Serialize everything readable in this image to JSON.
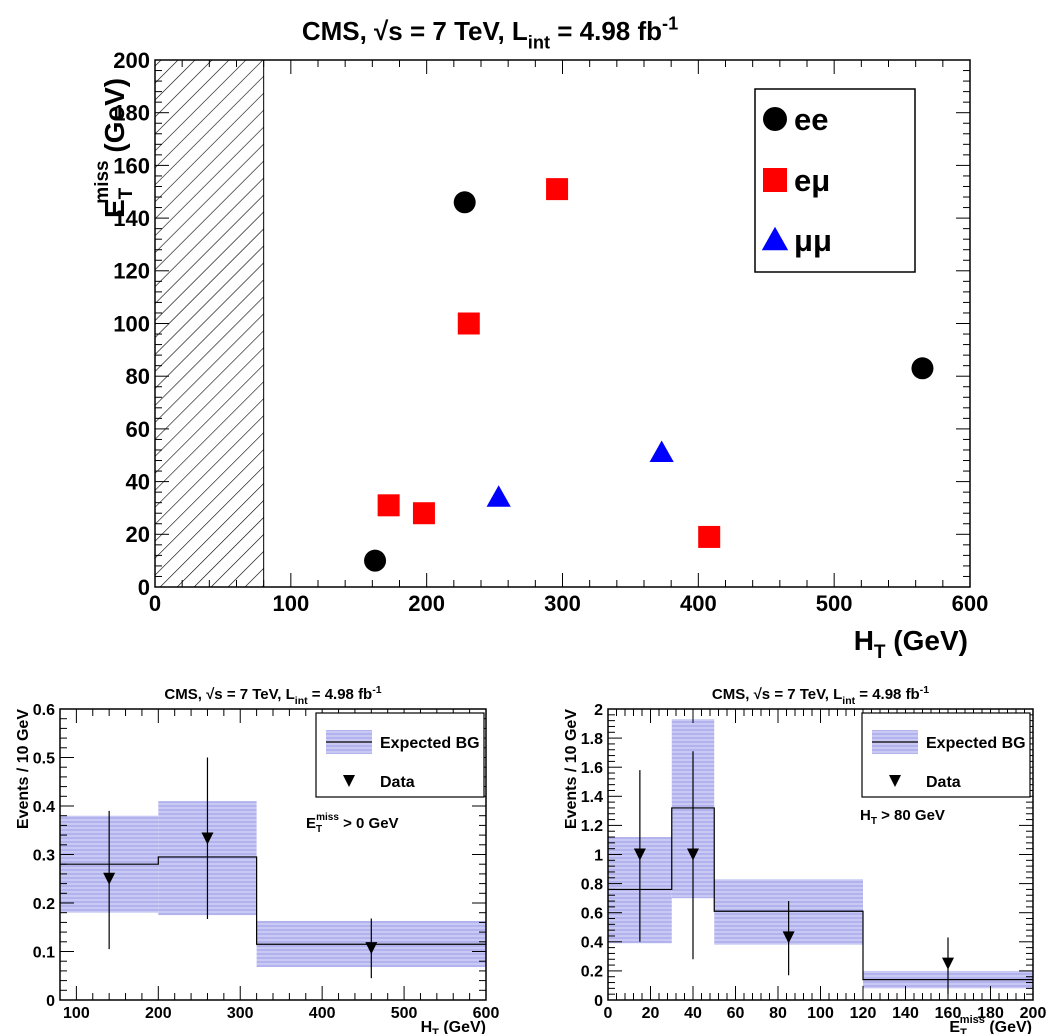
{
  "chart_data": [
    {
      "type": "scatter",
      "title": "CMS, √s = 7 TeV, L",
      "title_sub": "int",
      "title_tail": " = 4.98 fb",
      "title_sup": "-1",
      "xlabel_main": "H",
      "xlabel_sub": "T",
      "xlabel_tail": " (GeV)",
      "ylabel_main": "E",
      "ylabel_sub": "T",
      "ylabel_sup": "miss",
      "ylabel_tail": " (GeV)",
      "xlim": [
        0,
        600
      ],
      "ylim": [
        0,
        200
      ],
      "x_ticks": [
        0,
        100,
        200,
        300,
        400,
        500,
        600
      ],
      "y_ticks": [
        0,
        20,
        40,
        60,
        80,
        100,
        120,
        140,
        160,
        180,
        200
      ],
      "excluded_region": [
        0,
        80
      ],
      "legend_position": "top-right",
      "series": [
        {
          "name": "ee",
          "marker": "circle",
          "color": "#000000",
          "x": [
            162,
            228,
            565
          ],
          "y": [
            10,
            146,
            83
          ]
        },
        {
          "name": "eμ",
          "marker": "square",
          "color": "#ff0000",
          "x": [
            172,
            198,
            231,
            296,
            408
          ],
          "y": [
            31,
            28,
            100,
            151,
            19
          ]
        },
        {
          "name": "μμ",
          "marker": "triangle",
          "color": "#0000ff",
          "x": [
            253,
            373
          ],
          "y": [
            34,
            51
          ]
        }
      ]
    },
    {
      "type": "histogram",
      "title": "CMS, √s = 7 TeV, L",
      "title_sub": "int",
      "title_tail": " = 4.98 fb",
      "title_sup": "-1",
      "xlabel_main": "H",
      "xlabel_sub": "T",
      "xlabel_tail": " (GeV)",
      "ylabel": "Events / 10 GeV",
      "xlim": [
        80,
        600
      ],
      "ylim": [
        0,
        0.6
      ],
      "x_ticks": [
        100,
        200,
        300,
        400,
        500,
        600
      ],
      "y_ticks": [
        0,
        0.1,
        0.2,
        0.3,
        0.4,
        0.5,
        0.6
      ],
      "legend_position": "top-right",
      "legend": {
        "band": "Expected BG",
        "data": "Data"
      },
      "annotation_main": "E",
      "annotation_sub": "T",
      "annotation_sup": "miss",
      "annotation_tail": " > 0 GeV",
      "bins": [
        {
          "lo": 80,
          "hi": 200,
          "bg": 0.28,
          "bg_lo": 0.18,
          "bg_hi": 0.38
        },
        {
          "lo": 200,
          "hi": 320,
          "bg": 0.295,
          "bg_lo": 0.175,
          "bg_hi": 0.41
        },
        {
          "lo": 320,
          "hi": 600,
          "bg": 0.115,
          "bg_lo": 0.068,
          "bg_hi": 0.163
        }
      ],
      "data_points": [
        {
          "x": 140,
          "y": 0.25,
          "lo": 0.105,
          "hi": 0.39
        },
        {
          "x": 260,
          "y": 0.333,
          "lo": 0.167,
          "hi": 0.5
        },
        {
          "x": 460,
          "y": 0.107,
          "lo": 0.045,
          "hi": 0.168
        }
      ]
    },
    {
      "type": "histogram",
      "title": "CMS, √s = 7 TeV, L",
      "title_sub": "int",
      "title_tail": " = 4.98 fb",
      "title_sup": "-1",
      "xlabel_main": "E",
      "xlabel_sub": "T",
      "xlabel_sup": "miss",
      "xlabel_tail": " (GeV)",
      "ylabel": "Events / 10 GeV",
      "xlim": [
        0,
        200
      ],
      "ylim": [
        0,
        2
      ],
      "x_ticks": [
        0,
        20,
        40,
        60,
        80,
        100,
        120,
        140,
        160,
        180,
        200
      ],
      "y_ticks": [
        0,
        0.2,
        0.4,
        0.6,
        0.8,
        1,
        1.2,
        1.4,
        1.6,
        1.8,
        2
      ],
      "legend_position": "top-right",
      "legend": {
        "band": "Expected BG",
        "data": "Data"
      },
      "annotation_main": "H",
      "annotation_sub": "T",
      "annotation_sup": "",
      "annotation_tail": " > 80 GeV",
      "bins": [
        {
          "lo": 0,
          "hi": 30,
          "bg": 0.76,
          "bg_lo": 0.39,
          "bg_hi": 1.12
        },
        {
          "lo": 30,
          "hi": 50,
          "bg": 1.32,
          "bg_lo": 0.7,
          "bg_hi": 1.93
        },
        {
          "lo": 50,
          "hi": 120,
          "bg": 0.61,
          "bg_lo": 0.38,
          "bg_hi": 0.83
        },
        {
          "lo": 120,
          "hi": 200,
          "bg": 0.14,
          "bg_lo": 0.08,
          "bg_hi": 0.2
        }
      ],
      "data_points": [
        {
          "x": 15,
          "y": 1.0,
          "lo": 0.4,
          "hi": 1.58
        },
        {
          "x": 40,
          "y": 1.0,
          "lo": 0.28,
          "hi": 1.71
        },
        {
          "x": 85,
          "y": 0.43,
          "lo": 0.17,
          "hi": 0.68
        },
        {
          "x": 160,
          "y": 0.25,
          "lo": 0.04,
          "hi": 0.43
        }
      ]
    }
  ]
}
